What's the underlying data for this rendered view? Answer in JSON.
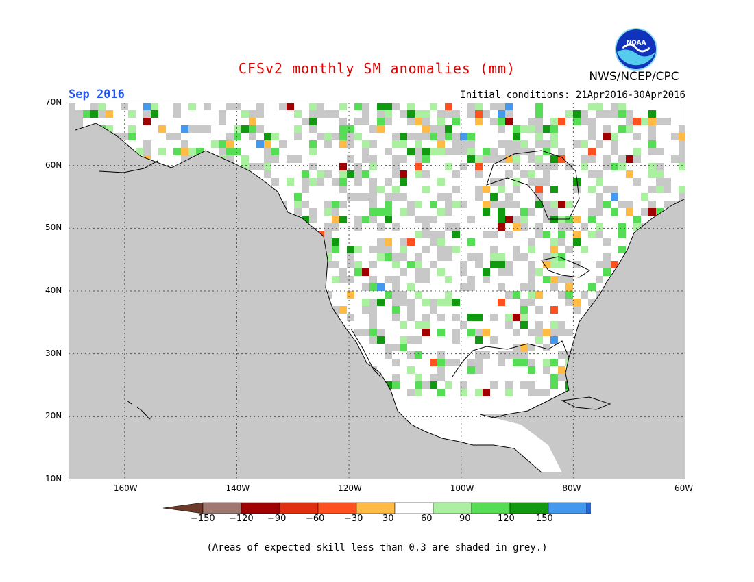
{
  "title": "CFSv2 monthly SM anomalies (mm)",
  "valid_month": "Sep 2016",
  "initial_conditions": "Initial conditions: 21Apr2016-30Apr2016",
  "organization": "NWS/NCEP/CPC",
  "logo_text": "NOAA",
  "note": "(Areas of expected skill less than 0.3 are shaded in grey.)",
  "map": {
    "extent": {
      "lon_min": -170,
      "lon_max": -60,
      "lat_min": 10,
      "lat_max": 70
    },
    "lat_labels": [
      "70N",
      "60N",
      "50N",
      "40N",
      "30N",
      "20N",
      "10N"
    ],
    "lon_labels": [
      "160W",
      "140W",
      "120W",
      "100W",
      "80W",
      "60W"
    ],
    "gridlines": "dotted",
    "colors": {
      "ocean": "#c8c8c8",
      "low_skill": "#c8c8c8",
      "near_zero": "#ffffff"
    }
  },
  "colorbar": {
    "bins": [
      {
        "color": "#6b3a2a"
      },
      {
        "color": "#a07870"
      },
      {
        "color": "#a00000"
      },
      {
        "color": "#e03010"
      },
      {
        "color": "#ff5020"
      },
      {
        "color": "#ffbb44"
      },
      {
        "color": "#ffffff"
      },
      {
        "color": "#aaf0a0"
      },
      {
        "color": "#55dd55"
      },
      {
        "color": "#119911"
      },
      {
        "color": "#4499ee"
      },
      {
        "color": "#2266dd"
      }
    ],
    "labels": [
      "−150",
      "−120",
      "−90",
      "−60",
      "−30",
      "30",
      "60",
      "90",
      "120",
      "150"
    ]
  }
}
